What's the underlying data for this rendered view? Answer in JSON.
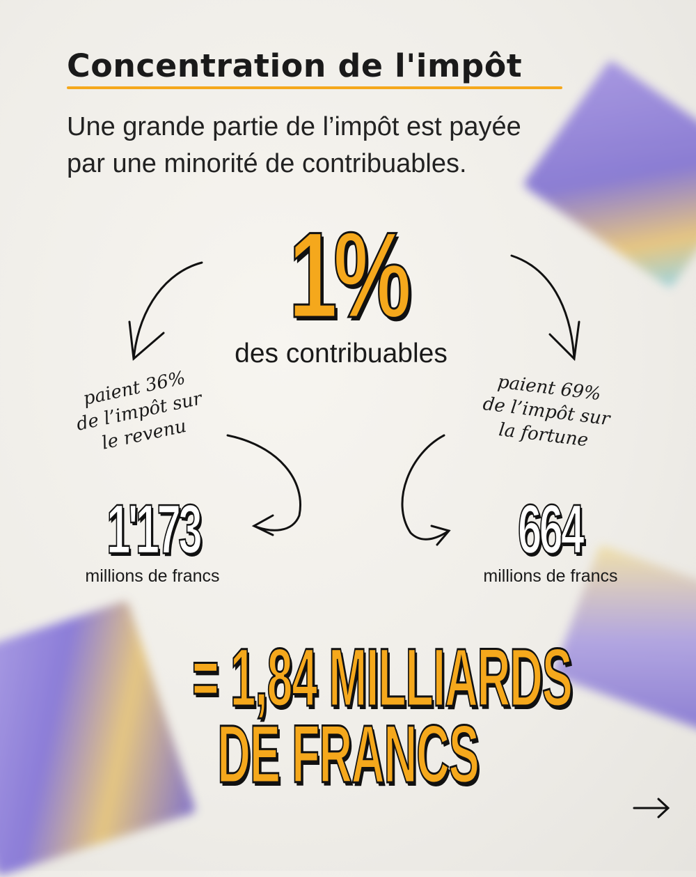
{
  "header": {
    "title": "Concentration de l'impôt",
    "subtitle_line1": "Une grande partie de l’impôt est payée",
    "subtitle_line2": "par une minorité de contribuables."
  },
  "headline": {
    "value": "1%",
    "label": "des contribuables"
  },
  "left": {
    "note_line1": "paient 36%",
    "note_line2": "de l’impôt sur",
    "note_line3": "le revenu",
    "amount": "1'173",
    "unit": "millions de francs"
  },
  "right": {
    "note_line1": "paient 69%",
    "note_line2": "de l’impôt sur",
    "note_line3": "la fortune",
    "amount": "664",
    "unit": "millions de francs"
  },
  "total": {
    "line1": "= 1,84 MILLIARDS",
    "line2": "DE FRANCS"
  },
  "nav": {
    "next_icon": "arrow-right-icon"
  },
  "colors": {
    "accent": "#f5a81c",
    "text": "#1a1a1a",
    "banknote": "#8a78d8"
  }
}
